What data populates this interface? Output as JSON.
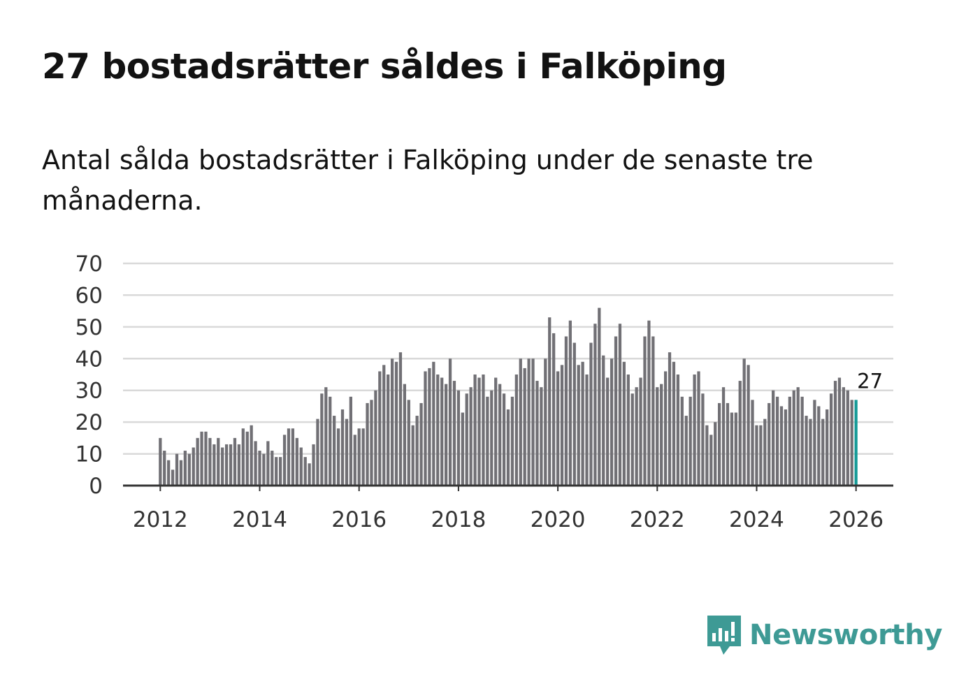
{
  "colors": {
    "bar": "#717075",
    "highlight": "#159a97",
    "grid": "#d9d9d9",
    "axis": "#333333",
    "brand": "#3e9a95"
  },
  "brand": {
    "name": "Newsworthy",
    "icon": "chart-bubble-icon"
  },
  "chart_data": {
    "type": "bar",
    "title": "27 bostadsrätter såldes i Falköping",
    "subtitle": "Antal sålda bostadsrätter i Falköping under de senaste tre månaderna.",
    "xlabel": "",
    "ylabel": "",
    "ylim": [
      0,
      70
    ],
    "y_ticks": [
      "0",
      "10",
      "20",
      "30",
      "40",
      "50",
      "60",
      "70"
    ],
    "x_ticks": [
      "2012",
      "2014",
      "2016",
      "2018",
      "2020",
      "2022",
      "2024",
      "2026"
    ],
    "x_range": [
      2011.25,
      2026.75
    ],
    "first_period": 2012.0,
    "period_step": 0.08333,
    "grid": true,
    "annotation": "27",
    "highlight_last": true,
    "values": [
      15,
      11,
      8,
      5,
      10,
      8,
      11,
      10,
      12,
      15,
      17,
      17,
      15,
      13,
      15,
      12,
      13,
      13,
      15,
      13,
      18,
      17,
      19,
      14,
      11,
      10,
      14,
      11,
      9,
      9,
      16,
      18,
      18,
      15,
      12,
      9,
      7,
      13,
      21,
      29,
      31,
      28,
      22,
      18,
      24,
      21,
      28,
      16,
      18,
      18,
      26,
      27,
      30,
      36,
      38,
      35,
      40,
      39,
      42,
      32,
      27,
      19,
      22,
      26,
      36,
      37,
      39,
      35,
      34,
      32,
      40,
      33,
      30,
      23,
      29,
      31,
      35,
      34,
      35,
      28,
      30,
      34,
      32,
      29,
      24,
      28,
      35,
      40,
      37,
      40,
      40,
      33,
      31,
      40,
      53,
      48,
      36,
      38,
      47,
      52,
      45,
      38,
      39,
      35,
      45,
      51,
      56,
      41,
      34,
      40,
      47,
      51,
      39,
      35,
      29,
      31,
      34,
      47,
      52,
      47,
      31,
      32,
      36,
      42,
      39,
      35,
      28,
      22,
      28,
      35,
      36,
      29,
      19,
      16,
      20,
      26,
      31,
      26,
      23,
      23,
      33,
      40,
      38,
      27,
      19,
      19,
      21,
      26,
      30,
      28,
      25,
      24,
      28,
      30,
      31,
      28,
      22,
      21,
      27,
      25,
      21,
      24,
      29,
      33,
      34,
      31,
      30,
      27,
      27
    ]
  }
}
